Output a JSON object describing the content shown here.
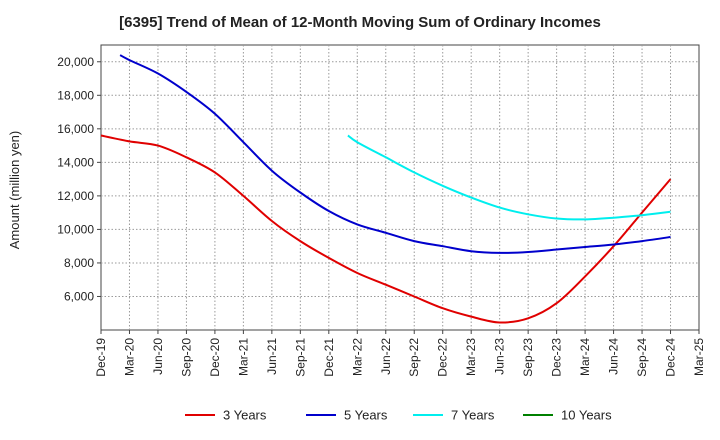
{
  "chart_data": {
    "type": "line",
    "title": "[6395]  Trend of Mean of 12-Month Moving Sum of Ordinary Incomes",
    "xlabel": "",
    "ylabel": "Amount (million yen)",
    "x_ticks": [
      "Dec-19",
      "Mar-20",
      "Jun-20",
      "Sep-20",
      "Dec-20",
      "Mar-21",
      "Jun-21",
      "Sep-21",
      "Dec-21",
      "Mar-22",
      "Jun-22",
      "Sep-22",
      "Dec-22",
      "Mar-23",
      "Jun-23",
      "Sep-23",
      "Dec-23",
      "Mar-24",
      "Jun-24",
      "Sep-24",
      "Dec-24",
      "Mar-25"
    ],
    "y_ticks": [
      "6,000",
      "8,000",
      "10,000",
      "12,000",
      "14,000",
      "16,000",
      "18,000",
      "20,000"
    ],
    "y_tick_values": [
      6000,
      8000,
      10000,
      12000,
      14000,
      16000,
      18000,
      20000
    ],
    "ylim": [
      4000,
      21000
    ],
    "grid": true,
    "legend_position": "bottom",
    "series": [
      {
        "name": "3 Years",
        "color": "#e00000",
        "points": [
          [
            0,
            15600
          ],
          [
            1,
            15250
          ],
          [
            2,
            15000
          ],
          [
            3,
            14300
          ],
          [
            4,
            13400
          ],
          [
            5,
            12000
          ],
          [
            6,
            10500
          ],
          [
            7,
            9300
          ],
          [
            8,
            8300
          ],
          [
            9,
            7400
          ],
          [
            10,
            6700
          ],
          [
            11,
            6000
          ],
          [
            12,
            5300
          ],
          [
            13,
            4800
          ],
          [
            14,
            4450
          ],
          [
            15,
            4700
          ],
          [
            16,
            5600
          ],
          [
            17,
            7200
          ],
          [
            18,
            9000
          ],
          [
            19,
            11000
          ],
          [
            20,
            13000
          ]
        ]
      },
      {
        "name": "5 Years",
        "color": "#0000cc",
        "points": [
          [
            0.67,
            20400
          ],
          [
            1,
            20100
          ],
          [
            2,
            19300
          ],
          [
            3,
            18200
          ],
          [
            4,
            16900
          ],
          [
            5,
            15200
          ],
          [
            6,
            13500
          ],
          [
            7,
            12200
          ],
          [
            8,
            11100
          ],
          [
            9,
            10300
          ],
          [
            10,
            9800
          ],
          [
            11,
            9300
          ],
          [
            12,
            9000
          ],
          [
            13,
            8700
          ],
          [
            14,
            8600
          ],
          [
            15,
            8650
          ],
          [
            16,
            8800
          ],
          [
            17,
            8950
          ],
          [
            18,
            9100
          ],
          [
            19,
            9300
          ],
          [
            20,
            9550
          ]
        ]
      },
      {
        "name": "7 Years",
        "color": "#00eeee",
        "points": [
          [
            8.67,
            15600
          ],
          [
            9,
            15200
          ],
          [
            10,
            14300
          ],
          [
            11,
            13400
          ],
          [
            12,
            12600
          ],
          [
            13,
            11900
          ],
          [
            14,
            11300
          ],
          [
            15,
            10900
          ],
          [
            16,
            10650
          ],
          [
            17,
            10600
          ],
          [
            18,
            10700
          ],
          [
            19,
            10850
          ],
          [
            20,
            11050
          ]
        ]
      },
      {
        "name": "10 Years",
        "color": "#008000",
        "points": []
      }
    ]
  }
}
